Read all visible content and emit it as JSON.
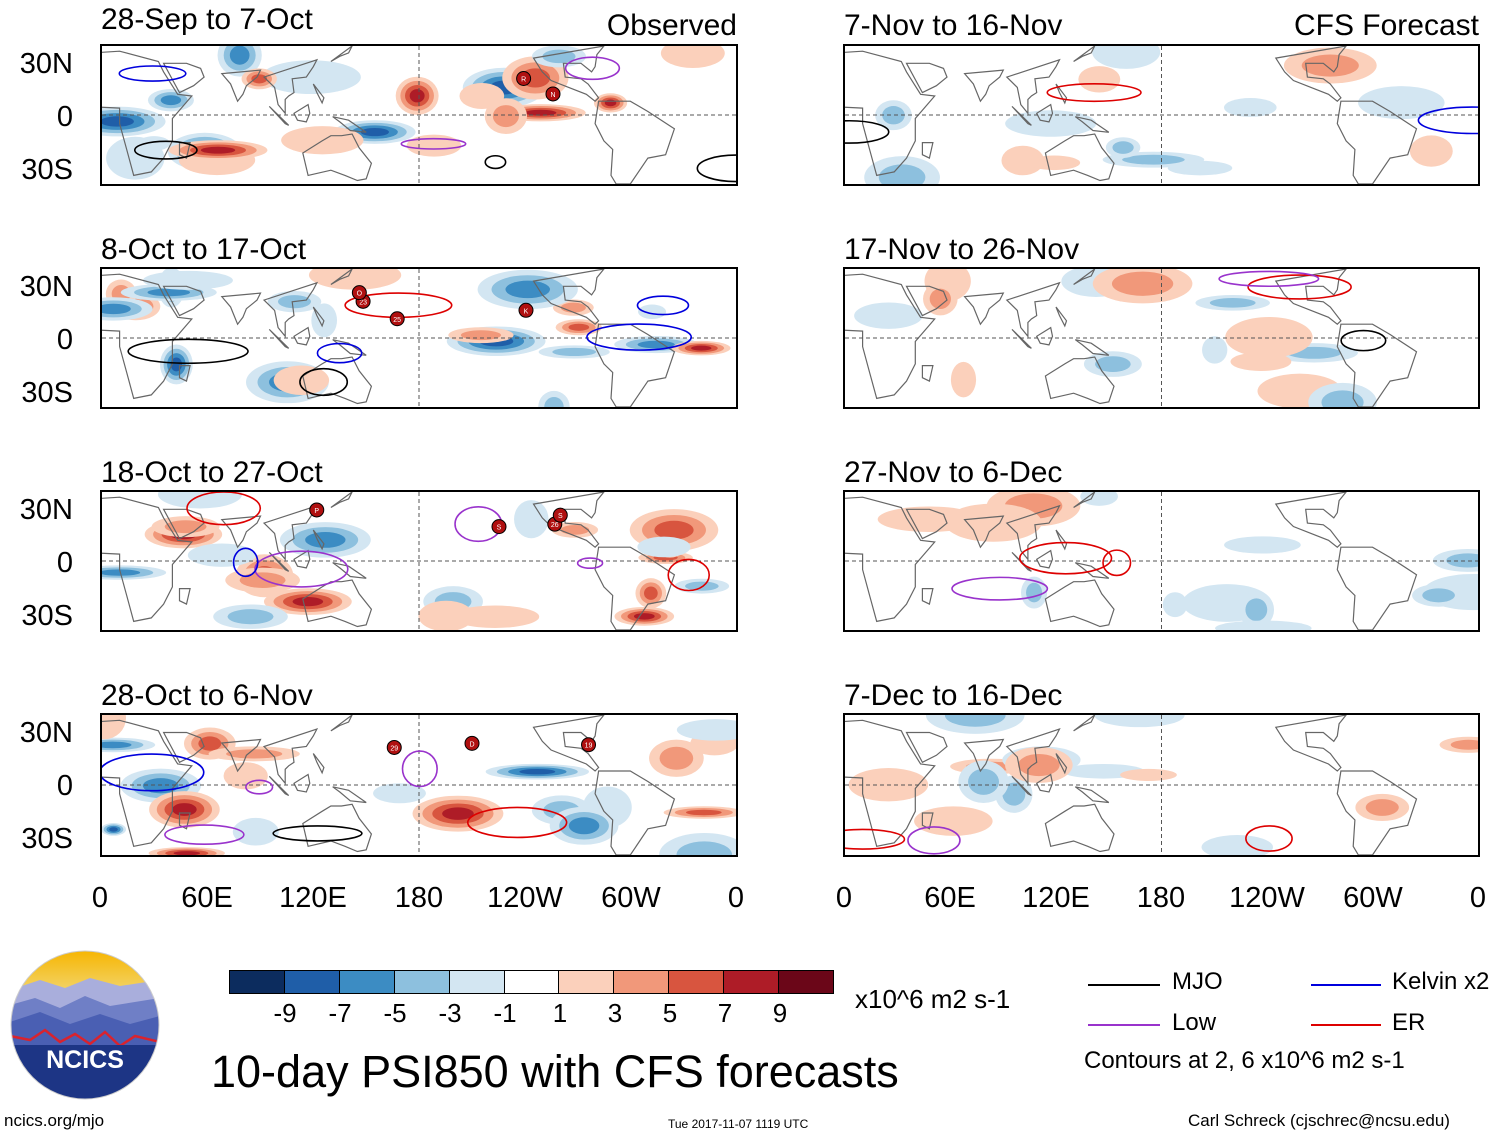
{
  "chart_data": {
    "type": "heatmap",
    "title": "10-day PSI850 with CFS forecasts",
    "variable": "PSI850",
    "units": "x10^6 m2 s-1",
    "columns": [
      "Observed",
      "CFS Forecast"
    ],
    "panels": [
      {
        "period": "28-Sep to 7-Oct",
        "tag": "Observed",
        "storms": [
          "R",
          "N"
        ]
      },
      {
        "period": "8-Oct to 17-Oct",
        "tag": "",
        "storms": [
          "23",
          "K",
          "25",
          "O"
        ]
      },
      {
        "period": "18-Oct to 27-Oct",
        "tag": "",
        "storms": [
          "26",
          "S",
          "P",
          "S"
        ]
      },
      {
        "period": "28-Oct to 6-Nov",
        "tag": "",
        "storms": [
          "29",
          "D",
          "19"
        ]
      },
      {
        "period": "7-Nov to 16-Nov",
        "tag": "CFS Forecast",
        "storms": []
      },
      {
        "period": "17-Nov to 26-Nov",
        "tag": "",
        "storms": []
      },
      {
        "period": "27-Nov to 6-Dec",
        "tag": "",
        "storms": []
      },
      {
        "period": "7-Dec to 16-Dec",
        "tag": "",
        "storms": []
      }
    ],
    "lat_ticks": [
      "30N",
      "0",
      "30S"
    ],
    "lon_ticks": [
      "0",
      "60E",
      "120E",
      "180",
      "120W",
      "60W",
      "0"
    ],
    "lat_range": [
      -40,
      40
    ],
    "lon_range": [
      0,
      360
    ],
    "colorbar": {
      "levels": [
        "-9",
        "-7",
        "-5",
        "-3",
        "-1",
        "1",
        "3",
        "5",
        "7",
        "9"
      ],
      "colors": [
        "#0c2c5e",
        "#1f5ea8",
        "#3c8cc3",
        "#8dc0de",
        "#d3e6f2",
        "#ffffff",
        "#fbd0bb",
        "#f1987a",
        "#d8553f",
        "#ae1c27",
        "#6b0618"
      ],
      "units_label": "x10^6 m2 s-1"
    },
    "legend": [
      {
        "label": "MJO",
        "color": "#000000"
      },
      {
        "label": "Kelvin x2",
        "color": "#0000dd"
      },
      {
        "label": "Low",
        "color": "#9933cc"
      },
      {
        "label": "ER",
        "color": "#dd0000"
      }
    ],
    "contour_note": "Contours at 2, 6 x10^6 m2 s-1"
  },
  "footer": {
    "logo_text": "NCICS",
    "url": "ncics.org/mjo",
    "timestamp": "Tue 2017-11-07 1119 UTC",
    "author": "Carl Schreck (cjschrec@ncsu.edu)"
  }
}
